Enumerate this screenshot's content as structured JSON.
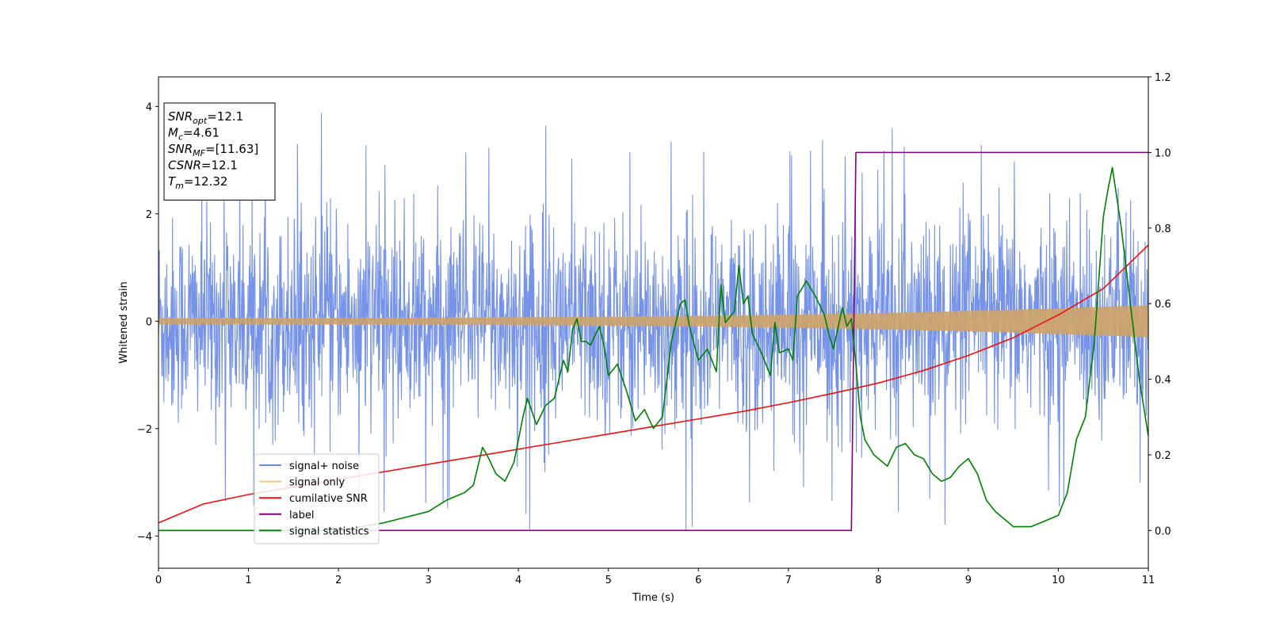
{
  "chart_data": {
    "type": "line",
    "xlabel": "Time (s)",
    "ylabel": "Whitened strain",
    "xlim": [
      0,
      11
    ],
    "ylim_left": [
      -4.6,
      4.55
    ],
    "ylim_right": [
      -0.1,
      1.2
    ],
    "x_ticks": [
      0,
      1,
      2,
      3,
      4,
      5,
      6,
      7,
      8,
      9,
      10,
      11
    ],
    "y_left_ticks": [
      -4,
      -2,
      0,
      2,
      4
    ],
    "y_right_ticks": [
      0.0,
      0.2,
      0.4,
      0.6,
      0.8,
      1.0,
      1.2
    ],
    "grid": false,
    "legend_position": "lower-left",
    "annotation": {
      "lines": [
        {
          "base": "SNR",
          "sub": "opt",
          "value": "=12.1"
        },
        {
          "base": "M",
          "sub": "c",
          "value": "=4.61"
        },
        {
          "base": "SNR",
          "sub": "MF",
          "value": "=[11.63]"
        },
        {
          "base": "CSNR",
          "sub": "",
          "value": "=12.1"
        },
        {
          "base": "T",
          "sub": "m",
          "value": "=12.32"
        }
      ]
    },
    "series": [
      {
        "name": "signal+ noise",
        "axis": "left",
        "color": "#6a8ae6",
        "kind": "noise-band",
        "std": 0.95,
        "min_peak": -4.15,
        "max_peak": 4.15
      },
      {
        "name": "signal only",
        "axis": "left",
        "color": "#f5c878",
        "kind": "chirp",
        "amplitude_start": 0.06,
        "amplitude_end": 0.3
      },
      {
        "name": "cumilative SNR",
        "axis": "right",
        "color": "#ee1111",
        "x": [
          0,
          0.5,
          1,
          1.5,
          2,
          2.5,
          3,
          3.5,
          4,
          4.5,
          5,
          5.5,
          6,
          6.5,
          7,
          7.5,
          8,
          8.5,
          9,
          9.5,
          10,
          10.5,
          11
        ],
        "y": [
          0.02,
          0.07,
          0.095,
          0.115,
          0.135,
          0.155,
          0.175,
          0.195,
          0.215,
          0.235,
          0.255,
          0.275,
          0.295,
          0.315,
          0.338,
          0.363,
          0.39,
          0.423,
          0.463,
          0.51,
          0.57,
          0.64,
          0.755
        ]
      },
      {
        "name": "label",
        "axis": "right",
        "color": "#800080",
        "x": [
          0,
          7.7,
          7.75,
          11
        ],
        "y": [
          0.0,
          0.0,
          1.0,
          1.0
        ]
      },
      {
        "name": "signal statistics",
        "axis": "right",
        "color": "#008000",
        "x": [
          0,
          1.0,
          2.0,
          2.5,
          3.0,
          3.2,
          3.4,
          3.5,
          3.6,
          3.65,
          3.75,
          3.85,
          3.95,
          4.05,
          4.1,
          4.2,
          4.3,
          4.4,
          4.5,
          4.55,
          4.6,
          4.65,
          4.7,
          4.75,
          4.8,
          4.9,
          4.95,
          5.0,
          5.1,
          5.2,
          5.3,
          5.4,
          5.5,
          5.6,
          5.7,
          5.8,
          5.85,
          5.9,
          6.0,
          6.1,
          6.2,
          6.25,
          6.3,
          6.4,
          6.45,
          6.5,
          6.55,
          6.6,
          6.7,
          6.8,
          6.85,
          6.9,
          7.0,
          7.05,
          7.1,
          7.15,
          7.2,
          7.3,
          7.4,
          7.45,
          7.5,
          7.6,
          7.65,
          7.7,
          7.75,
          7.8,
          7.85,
          7.9,
          7.95,
          8.0,
          8.1,
          8.2,
          8.3,
          8.4,
          8.5,
          8.6,
          8.7,
          8.8,
          8.9,
          9.0,
          9.1,
          9.2,
          9.3,
          9.4,
          9.5,
          9.6,
          9.7,
          9.8,
          9.9,
          10.0,
          10.1,
          10.2,
          10.3,
          10.4,
          10.5,
          10.55,
          10.6,
          10.7,
          10.8,
          10.9,
          11.0
        ],
        "y": [
          0.0,
          0.0,
          0.0,
          0.02,
          0.05,
          0.08,
          0.1,
          0.12,
          0.22,
          0.2,
          0.15,
          0.13,
          0.18,
          0.3,
          0.35,
          0.28,
          0.33,
          0.35,
          0.45,
          0.42,
          0.53,
          0.56,
          0.5,
          0.5,
          0.49,
          0.54,
          0.49,
          0.41,
          0.44,
          0.37,
          0.29,
          0.32,
          0.27,
          0.3,
          0.5,
          0.6,
          0.61,
          0.54,
          0.45,
          0.48,
          0.42,
          0.65,
          0.55,
          0.58,
          0.7,
          0.6,
          0.62,
          0.52,
          0.47,
          0.41,
          0.55,
          0.47,
          0.48,
          0.45,
          0.62,
          0.64,
          0.66,
          0.62,
          0.57,
          0.52,
          0.48,
          0.59,
          0.54,
          0.56,
          0.44,
          0.3,
          0.24,
          0.22,
          0.2,
          0.19,
          0.17,
          0.22,
          0.23,
          0.2,
          0.19,
          0.15,
          0.13,
          0.14,
          0.17,
          0.19,
          0.15,
          0.08,
          0.05,
          0.03,
          0.01,
          0.01,
          0.01,
          0.02,
          0.03,
          0.04,
          0.1,
          0.24,
          0.3,
          0.5,
          0.83,
          0.9,
          0.96,
          0.8,
          0.6,
          0.4,
          0.25
        ]
      }
    ]
  }
}
